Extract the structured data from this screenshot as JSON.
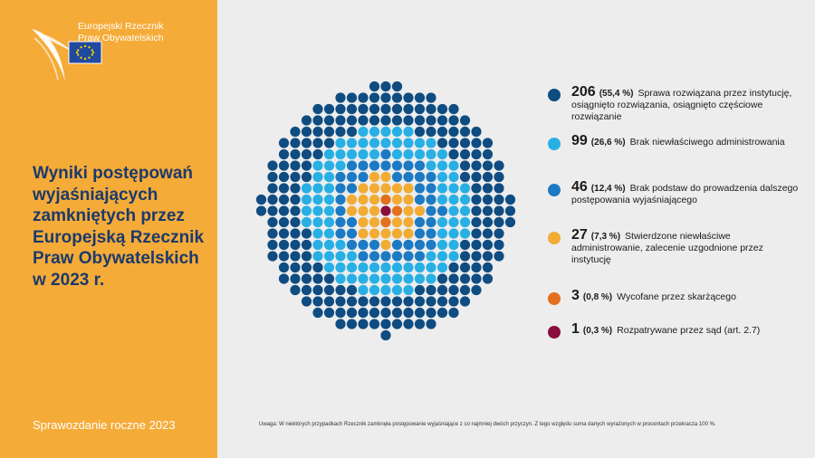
{
  "colors": {
    "sidebar_bg": "#f5ab38",
    "page_bg": "#ededed",
    "title_text": "#1b3a6b",
    "dark_blue": "#0f4c81",
    "light_blue": "#28b0e5",
    "mid_blue": "#1c7ac4",
    "yellow": "#f2ac34",
    "orange": "#e2701c",
    "maroon": "#8a0e3c"
  },
  "logo": {
    "line1": "Europejski Rzecznik",
    "line2": "Praw Obywatelskich",
    "icon": "eu-flag-icon"
  },
  "title": "Wyniki postępowań wyjaśniających zamkniętych przez Europejską Rzecznik Praw Obywatelskich w 2023 r.",
  "footer_left": "Sprawozdanie roczne 2023",
  "note": "Uwaga: W niektórych przypadkach Rzecznik zamknęła postępowanie wyjaśniające z co najmniej dwóch przyczyn. Z tego względu suma danych wyrażonych w procentach przekracza 100 %.",
  "legend": [
    {
      "value": "206",
      "pct": "(55,4 %)",
      "label": "Sprawa rozwiązana przez instytucję, osiągnięto rozwiązania, osiągnięto częściowe rozwiązanie",
      "color": "#0f4c81"
    },
    {
      "value": "99",
      "pct": "(26,6 %)",
      "label": "Brak niewłaściwego administrowania",
      "color": "#28b0e5"
    },
    {
      "value": "46",
      "pct": "(12,4 %)",
      "label": "Brak podstaw do prowadzenia dalszego postępowania wyjaśniającego",
      "color": "#1c7ac4"
    },
    {
      "value": "27",
      "pct": "(7,3 %)",
      "label": "Stwierdzone niewłaściwe administrowanie, zalecenie uzgodnione przez instytucję",
      "color": "#f2ac34"
    },
    {
      "value": "3",
      "pct": "(0,8 %)",
      "label": "Wycofane przez skarżącego",
      "color": "#e2701c"
    },
    {
      "value": "1",
      "pct": "(0,3 %)",
      "label": "Rozpatrywane przez sąd (art. 2.7)",
      "color": "#8a0e3c"
    }
  ],
  "chart_data": {
    "type": "dot-matrix",
    "series": [
      {
        "name": "Sprawa rozwiązana przez instytucję, osiągnięto rozwiązania, osiągnięto częściowe rozwiązanie",
        "value": 206,
        "percent": 55.4,
        "color": "#0f4c81"
      },
      {
        "name": "Brak niewłaściwego administrowania",
        "value": 99,
        "percent": 26.6,
        "color": "#28b0e5"
      },
      {
        "name": "Brak podstaw do prowadzenia dalszego postępowania wyjaśniającego",
        "value": 46,
        "percent": 12.4,
        "color": "#1c7ac4"
      },
      {
        "name": "Stwierdzone niewłaściwe administrowanie, zalecenie uzgodnione przez instytucję",
        "value": 27,
        "percent": 7.3,
        "color": "#f2ac34"
      },
      {
        "name": "Wycofane przez skarżącego",
        "value": 3,
        "percent": 0.8,
        "color": "#e2701c"
      },
      {
        "name": "Rozpatrywane przez sąd (art. 2.7)",
        "value": 1,
        "percent": 0.3,
        "color": "#8a0e3c"
      }
    ],
    "center_order": [
      "Rozpatrywane przez sąd (art. 2.7)",
      "Wycofane przez skarżącego",
      "Stwierdzone niewłaściwe administrowanie, zalecenie uzgodnione przez instytucję",
      "Brak podstaw do prowadzenia dalszego postępowania wyjaśniającego",
      "Brak niewłaściwego administrowania",
      "Sprawa rozwiązana przez instytucję, osiągnięto rozwiązania, osiągnięto częściowe rozwiązanie"
    ]
  }
}
